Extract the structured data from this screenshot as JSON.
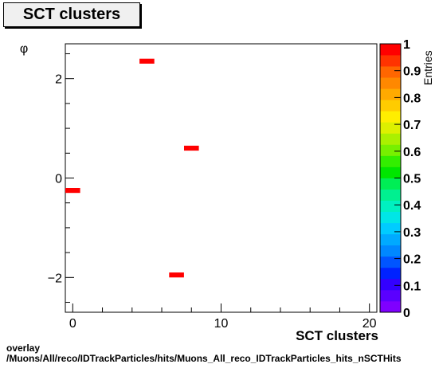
{
  "title": "SCT clusters",
  "footer": {
    "line1": "overlay",
    "line2": "/Muons/All/reco/IDTrackParticles/hits/Muons_All_reco_IDTrackParticles_hits_nSCTHits"
  },
  "chart_data": {
    "type": "heatmap",
    "title": "SCT clusters",
    "xlabel": "SCT clusters",
    "ylabel": "φ",
    "zlabel": "Entries",
    "xlim": [
      -0.5,
      20.5
    ],
    "ylim": [
      -2.7,
      2.7
    ],
    "zlim": [
      0,
      1
    ],
    "x_ticks": [
      0,
      10,
      20
    ],
    "y_ticks": [
      -2,
      0,
      2
    ],
    "z_ticks": [
      0,
      0.1,
      0.2,
      0.3,
      0.4,
      0.5,
      0.6,
      0.7,
      0.8,
      0.9,
      1
    ],
    "bins": [
      {
        "x": [
          4.5,
          5.5
        ],
        "y": [
          2.3,
          2.4
        ],
        "value": 1
      },
      {
        "x": [
          7.5,
          8.5
        ],
        "y": [
          0.55,
          0.65
        ],
        "value": 1
      },
      {
        "x": [
          -0.5,
          0.5
        ],
        "y": [
          -0.3,
          -0.2
        ],
        "value": 1
      },
      {
        "x": [
          6.5,
          7.5
        ],
        "y": [
          -2.0,
          -1.9
        ],
        "value": 1
      }
    ],
    "grid": false,
    "colors": {
      "bin": "#ff0000",
      "palette": [
        "#7f00ff",
        "#5a00ff",
        "#3300ff",
        "#0022ff",
        "#0055ff",
        "#0088ff",
        "#00aaff",
        "#00ccff",
        "#00e6e6",
        "#00f0c0",
        "#00f090",
        "#00ee55",
        "#00e600",
        "#33ee00",
        "#77f000",
        "#aaf000",
        "#ddf000",
        "#ffee00",
        "#ffcc00",
        "#ffaa00",
        "#ff8800",
        "#ff6600",
        "#ff3300",
        "#ff0000"
      ]
    }
  }
}
